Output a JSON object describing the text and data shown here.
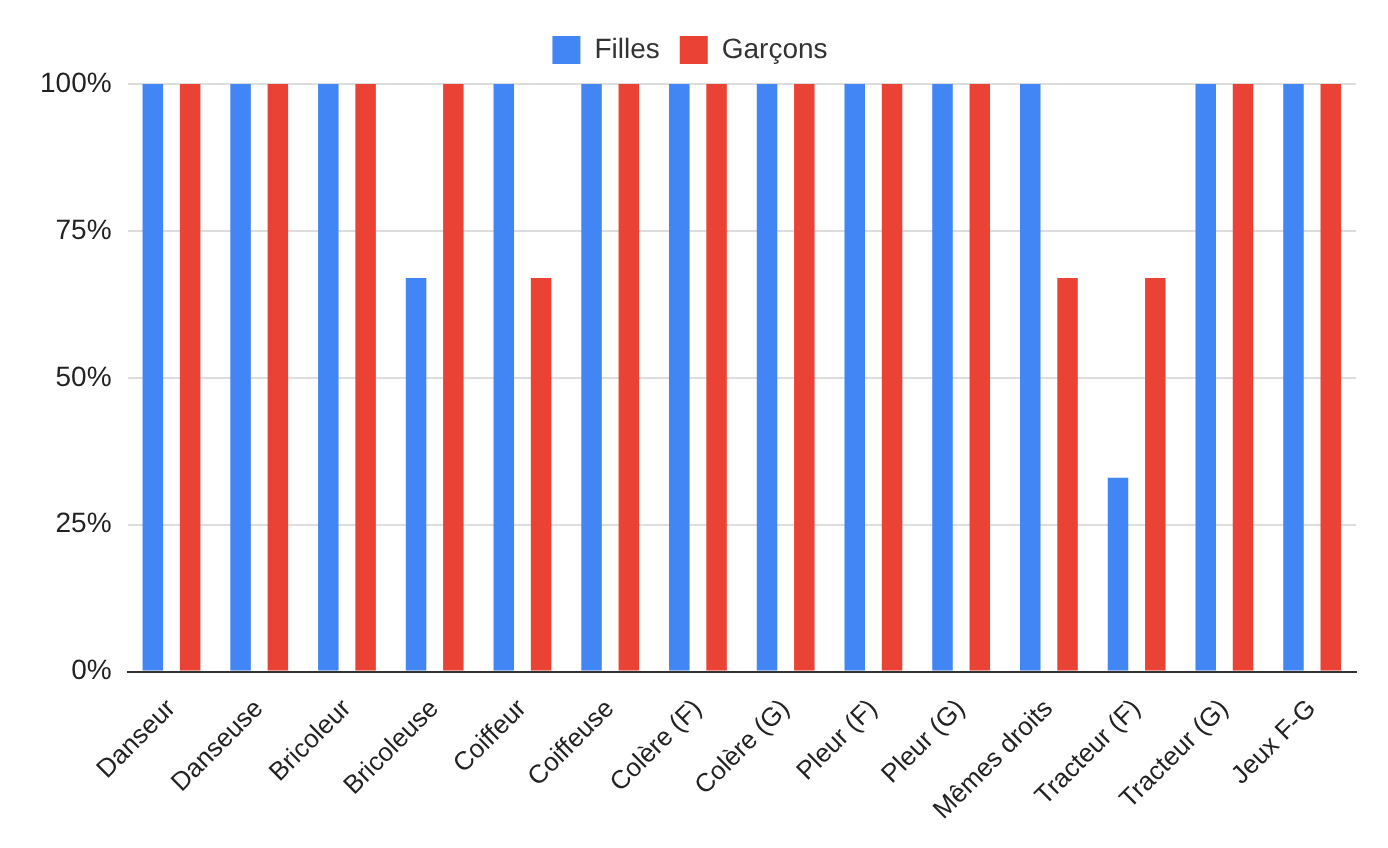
{
  "chart_data": {
    "type": "bar",
    "categories": [
      "Danseur",
      "Danseuse",
      "Bricoleur",
      "Bricoleuse",
      "Coiffeur",
      "Coiffeuse",
      "Colère (F)",
      "Colère (G)",
      "Pleur (F)",
      "Pleur (G)",
      "Mêmes droits",
      "Tracteur (F)",
      "Tracteur (G)",
      "Jeux F-G"
    ],
    "series": [
      {
        "name": "Filles",
        "color": "#4285f4",
        "values": [
          100,
          100,
          100,
          67,
          100,
          100,
          100,
          100,
          100,
          100,
          100,
          33,
          100,
          100
        ]
      },
      {
        "name": "Garçons",
        "color": "#ea4335",
        "values": [
          100,
          100,
          100,
          100,
          67,
          100,
          100,
          100,
          100,
          100,
          67,
          67,
          100,
          100
        ]
      }
    ],
    "ylim": [
      0,
      100
    ],
    "yticks": [
      {
        "value": 0,
        "label": "0%"
      },
      {
        "value": 25,
        "label": "25%"
      },
      {
        "value": 50,
        "label": "50%"
      },
      {
        "value": 75,
        "label": "75%"
      },
      {
        "value": 100,
        "label": "100%"
      }
    ],
    "grid": "y",
    "legend": "top"
  }
}
